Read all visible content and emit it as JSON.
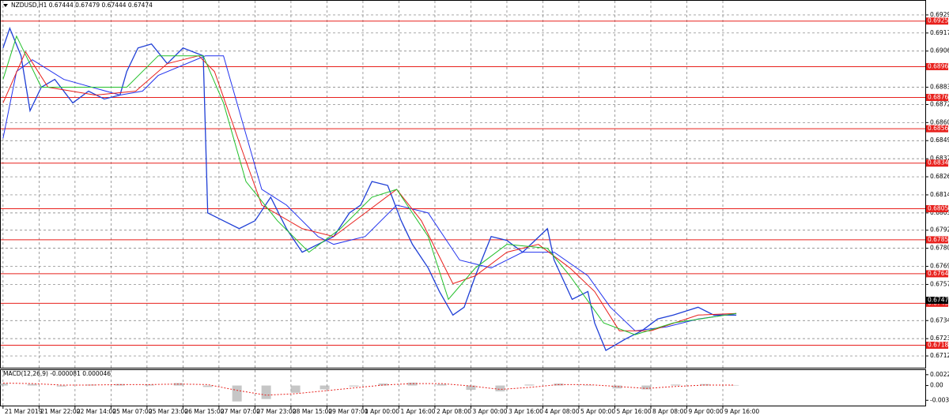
{
  "chart_data": {
    "type": "line",
    "title": "NZDUSD,H1  0.67444 0.67479 0.67444 0.67474",
    "xlim": [
      -1,
      410
    ],
    "ylim": [
      0.67045,
      0.6938
    ],
    "grid": true,
    "xticks": [
      {
        "value": 0,
        "label": "21 Mar 2019"
      },
      {
        "value": 16,
        "label": "21 Mar 22:00"
      },
      {
        "value": 32,
        "label": "22 Mar 14:00"
      },
      {
        "value": 48,
        "label": "25 Mar 07:00"
      },
      {
        "value": 64,
        "label": "25 Mar 23:00"
      },
      {
        "value": 80,
        "label": "26 Mar 15:00"
      },
      {
        "value": 96,
        "label": "27 Mar 07:00"
      },
      {
        "value": 112,
        "label": "27 Mar 23:00"
      },
      {
        "value": 128,
        "label": "28 Mar 15:00"
      },
      {
        "value": 144,
        "label": "29 Mar 07:00"
      },
      {
        "value": 160,
        "label": "1 Apr 00:00"
      },
      {
        "value": 176,
        "label": "1 Apr 16:00"
      },
      {
        "value": 192,
        "label": "2 Apr 08:00"
      },
      {
        "value": 208,
        "label": "3 Apr 00:00"
      },
      {
        "value": 224,
        "label": "3 Apr 16:00"
      },
      {
        "value": 240,
        "label": "4 Apr 08:00"
      },
      {
        "value": 256,
        "label": "5 Apr 00:00"
      },
      {
        "value": 272,
        "label": "5 Apr 16:00"
      },
      {
        "value": 288,
        "label": "8 Apr 08:00"
      },
      {
        "value": 304,
        "label": "9 Apr 00:00"
      },
      {
        "value": 320,
        "label": "9 Apr 16:00"
      }
    ],
    "yticks": [
      0.6929,
      0.69175,
      0.6906,
      0.6883,
      0.6872,
      0.68605,
      0.6849,
      0.68375,
      0.6826,
      0.68145,
      0.6803,
      0.6792,
      0.67805,
      0.6769,
      0.67575,
      0.67345,
      0.6723,
      0.6712
    ],
    "series": [
      {
        "color": "#1f3fd6",
        "x": [
          0,
          3,
          8,
          12,
          17,
          23,
          31,
          38,
          45,
          52,
          55,
          60,
          66,
          73,
          80,
          89,
          91,
          98,
          105,
          112,
          119,
          126,
          133,
          140,
          147,
          154,
          159,
          164,
          171,
          177,
          182,
          189,
          194,
          200,
          205,
          210,
          217,
          224,
          231,
          242,
          245,
          253,
          260,
          263,
          268,
          277,
          284,
          291,
          298,
          309,
          316,
          326
        ],
        "values": [
          0.6908,
          0.69205,
          0.6903,
          0.6868,
          0.6883,
          0.6888,
          0.6873,
          0.68805,
          0.68755,
          0.6878,
          0.6893,
          0.6908,
          0.69105,
          0.6898,
          0.6908,
          0.6903,
          0.6803,
          0.6798,
          0.6793,
          0.6798,
          0.6813,
          0.6793,
          0.6778,
          0.6783,
          0.6788,
          0.6803,
          0.6808,
          0.6823,
          0.68205,
          0.6798,
          0.6783,
          0.6768,
          0.6753,
          0.6738,
          0.6743,
          0.6763,
          0.6788,
          0.67855,
          0.6778,
          0.6793,
          0.6773,
          0.6748,
          0.6753,
          0.6733,
          0.67155,
          0.6723,
          0.6728,
          0.67355,
          0.6738,
          0.6743,
          0.6738,
          0.6738
        ]
      },
      {
        "color": "#2233ee",
        "x": [
          0,
          6,
          13,
          27,
          52,
          62,
          69,
          90,
          98,
          105,
          115,
          126,
          140,
          147,
          161,
          175,
          189,
          203,
          217,
          231,
          245,
          260,
          270,
          281,
          295,
          309,
          326
        ],
        "values": [
          0.68505,
          0.6893,
          0.69005,
          0.6888,
          0.6878,
          0.68805,
          0.68905,
          0.6903,
          0.6903,
          0.6868,
          0.6818,
          0.6808,
          0.6788,
          0.6783,
          0.6788,
          0.6808,
          0.6803,
          0.6773,
          0.6768,
          0.6778,
          0.6778,
          0.6763,
          0.6743,
          0.6728,
          0.67305,
          0.67355,
          0.6739
        ]
      },
      {
        "color": "#e8201c",
        "x": [
          0,
          10,
          20,
          41,
          59,
          73,
          87,
          94,
          105,
          115,
          133,
          147,
          161,
          175,
          186,
          200,
          210,
          224,
          238,
          252,
          263,
          274,
          288,
          309,
          326
        ],
        "values": [
          0.6873,
          0.69055,
          0.6883,
          0.6878,
          0.68805,
          0.6898,
          0.6903,
          0.6893,
          0.6848,
          0.6808,
          0.6793,
          0.6788,
          0.6803,
          0.6818,
          0.6798,
          0.6758,
          0.6763,
          0.6778,
          0.6783,
          0.6768,
          0.6753,
          0.6728,
          0.6728,
          0.6738,
          0.6739
        ]
      },
      {
        "color": "#22c02a",
        "x": [
          0,
          6,
          17,
          34,
          55,
          69,
          89,
          98,
          108,
          122,
          136,
          150,
          164,
          175,
          189,
          198,
          210,
          224,
          242,
          252,
          267,
          281,
          298,
          326
        ],
        "values": [
          0.6888,
          0.69155,
          0.6883,
          0.6883,
          0.6883,
          0.6903,
          0.6903,
          0.6873,
          0.6823,
          0.6798,
          0.6778,
          0.6793,
          0.6813,
          0.6818,
          0.6788,
          0.6748,
          0.6768,
          0.6783,
          0.67805,
          0.6763,
          0.6733,
          0.67255,
          0.6733,
          0.6739
        ]
      }
    ],
    "levels": {
      "color": "#e8201c",
      "values": [
        0.69251,
        0.68961,
        0.68765,
        0.68566,
        0.68347,
        0.68057,
        0.67859,
        0.67643,
        0.67455,
        0.67188
      ]
    },
    "current_price": 0.67474,
    "macd": {
      "title": "MACD(12,26,9) -0.000081 0.000046",
      "ylim": [
        -0.00416,
        0.0032
      ],
      "yticks": [
        0.002247,
        {
          "value": 0,
          "label": "0.00"
        },
        -0.00306
      ],
      "histogram": {
        "color": "#a0a0a0",
        "x": [
          0,
          13,
          26,
          39,
          52,
          65,
          78,
          91,
          104,
          117,
          130,
          143,
          156,
          169,
          182,
          195,
          208,
          221,
          234,
          247,
          260,
          273,
          286,
          299,
          312,
          325
        ],
        "values": [
          0.0004,
          0.0003,
          -0.0002,
          0.0002,
          0.0003,
          0.0002,
          0.0005,
          -0.0003,
          -0.0033,
          -0.0028,
          -0.0015,
          -0.0008,
          -0.0002,
          0.0004,
          0.0006,
          0.0003,
          -0.0009,
          -0.0012,
          0.0002,
          0.0004,
          0.0001,
          -0.0006,
          -0.0008,
          0.0002,
          0.0003,
          0.0001
        ]
      },
      "signal": {
        "color": "#e8201c",
        "x": [
          0,
          13,
          26,
          39,
          52,
          65,
          78,
          91,
          104,
          117,
          130,
          143,
          156,
          169,
          182,
          195,
          208,
          221,
          234,
          247,
          260,
          273,
          286,
          299,
          312,
          325
        ],
        "values": [
          0.0005,
          0.0004,
          0.0001,
          0.0001,
          0.0002,
          0.0002,
          0.0003,
          0.0002,
          -0.001,
          -0.002,
          -0.0017,
          -0.0011,
          -0.0005,
          0.0001,
          0.0004,
          0.0004,
          -0.0001,
          -0.0008,
          -0.0004,
          0.0002,
          0.0002,
          -0.0002,
          -0.0006,
          -0.0002,
          0.0001,
          0.0001
        ]
      }
    }
  }
}
